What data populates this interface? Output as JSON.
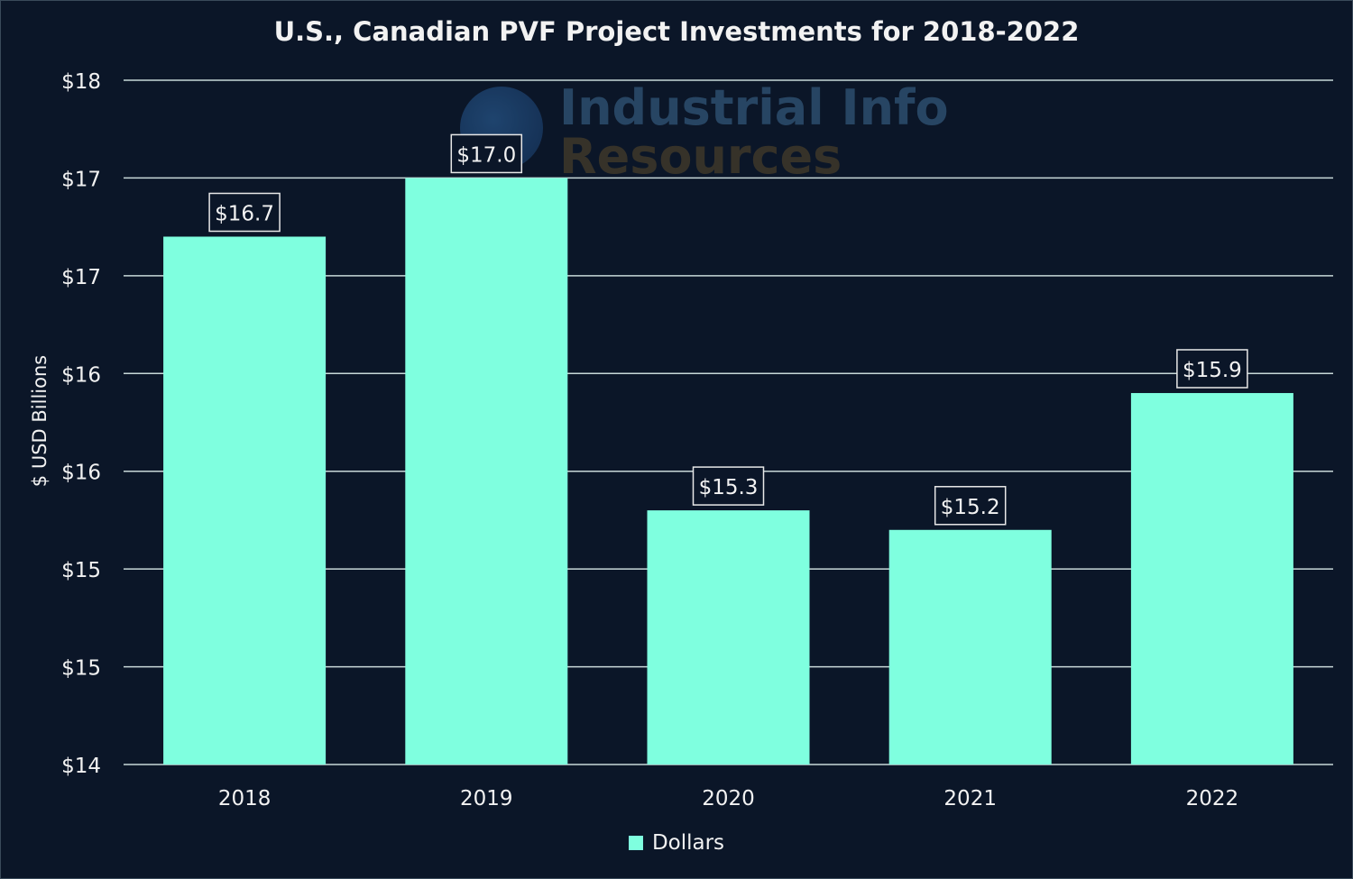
{
  "chart_data": {
    "type": "bar",
    "title": "U.S., Canadian PVF Project Investments for 2018-2022",
    "xlabel": "",
    "ylabel": "$ USD Billions",
    "categories": [
      "2018",
      "2019",
      "2020",
      "2021",
      "2022"
    ],
    "series": [
      {
        "name": "Dollars",
        "values": [
          16.7,
          17.0,
          15.3,
          15.2,
          15.9
        ],
        "labels": [
          "$16.7",
          "$17.0",
          "$15.3",
          "$15.2",
          "$15.9"
        ],
        "color": "#7fffdf"
      }
    ],
    "ylim": [
      14,
      17.5
    ],
    "yticks": [
      14,
      14.5,
      15,
      15.5,
      16,
      16.5,
      17,
      17.5
    ],
    "ytick_labels": [
      "$14",
      "$15",
      "$15",
      "$16",
      "$16",
      "$17",
      "$17",
      "$18"
    ],
    "grid": true,
    "legend": "bottom",
    "background": "#0b1628",
    "watermark": "Industrial Info Resources"
  }
}
